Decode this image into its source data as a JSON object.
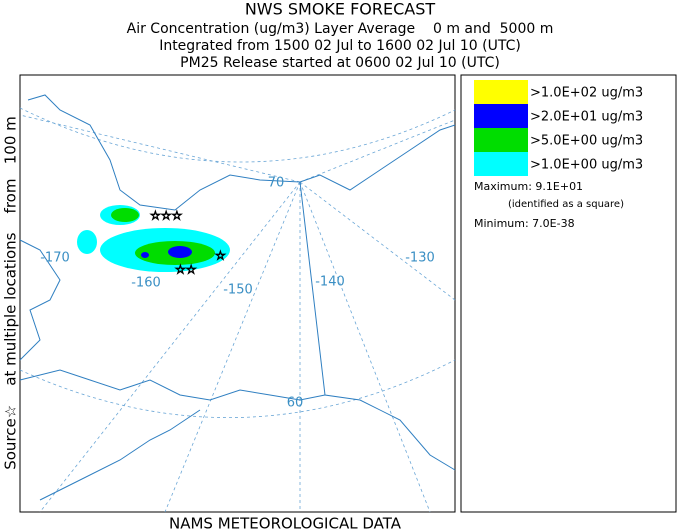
{
  "header": {
    "title": "NWS SMOKE FORECAST",
    "lines": [
      "Air Concentration (ug/m3) Layer Average    0 m and  5000 m",
      "Integrated from 1500 02 Jul to 1600 02 Jul 10 (UTC)",
      "PM25 Release started at 0600 02 Jul 10 (UTC)"
    ]
  },
  "side_label": "Source☆    at multiple locations    from   100 m",
  "footer": "NAMS METEOROLOGICAL DATA",
  "legend": [
    {
      "label": ">1.0E+02 ug/m3",
      "color": "#ffff00"
    },
    {
      "label": ">2.0E+01 ug/m3",
      "color": "#0000ff"
    },
    {
      "label": ">5.0E+00 ug/m3",
      "color": "#00dd00"
    },
    {
      "label": ">1.0E+00 ug/m3",
      "color": "#00ffff"
    }
  ],
  "maximum": "Maximum: 9.1E+01",
  "maximum_note": "(identified as a square)",
  "minimum": "Minimum: 7.0E-38",
  "map_labels": [
    "70",
    "-170",
    "-160",
    "-150",
    "-140",
    "-130",
    "60"
  ]
}
